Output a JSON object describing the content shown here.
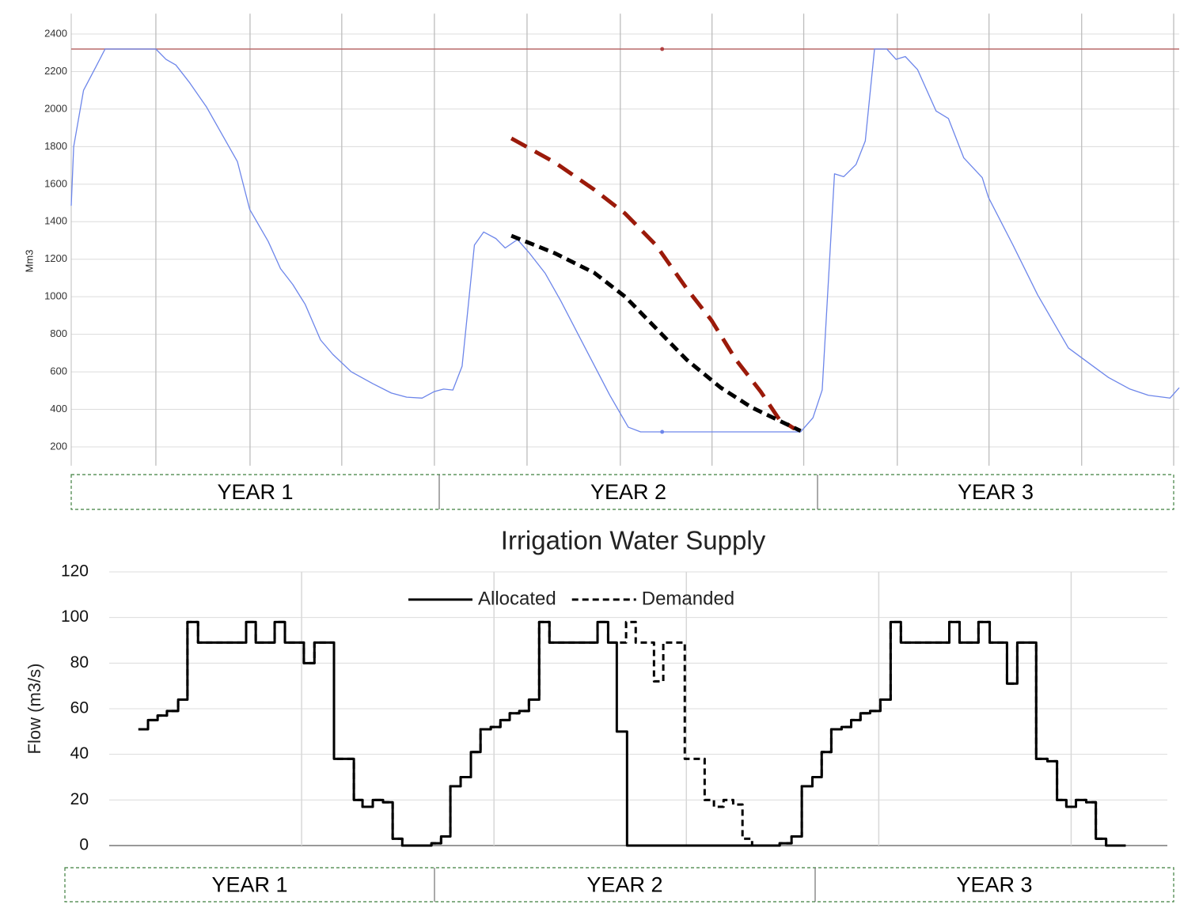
{
  "chart_data": [
    {
      "type": "line",
      "ylabel": "Mm3",
      "xlim": [
        0,
        36
      ],
      "ylim": [
        100,
        2500
      ],
      "yticks": [
        200,
        400,
        600,
        800,
        1000,
        1200,
        1400,
        1600,
        1800,
        2000,
        2200,
        2400
      ],
      "xgrid": [
        2.75,
        5.81,
        8.79,
        11.8,
        14.81,
        17.84,
        20.82,
        23.8,
        26.84,
        29.82,
        32.83,
        35.82
      ],
      "grid": true,
      "periods": [
        "YEAR 1",
        "YEAR 2",
        "YEAR 3"
      ],
      "reference_line": {
        "value": 2320,
        "color": "#b86a6a"
      },
      "markers": [
        {
          "x": 19.2,
          "value": 2320,
          "color": "#b04040"
        },
        {
          "x": 19.2,
          "value": 280,
          "color": "#6d86ea"
        }
      ],
      "series": [
        {
          "color": "#6d86ea",
          "style": "solid",
          "x": [
            0,
            0.08,
            0.4,
            0.8,
            1.1,
            2.75,
            3.08,
            3.4,
            3.85,
            4.4,
            4.9,
            5.4,
            5.8,
            6.4,
            6.8,
            7.2,
            7.6,
            8.1,
            8.5,
            9.1,
            9.8,
            10.4,
            10.9,
            11.4,
            11.8,
            12.1,
            12.4,
            12.7,
            13.1,
            13.4,
            13.8,
            14.1,
            14.5,
            14.9,
            15.4,
            15.9,
            16.7,
            17.5,
            18.1,
            18.5,
            19.2,
            23.7,
            24.1,
            24.4,
            24.8,
            25.1,
            25.5,
            25.8,
            26.1,
            26.5,
            26.8,
            27.1,
            27.5,
            28.1,
            28.5,
            29.0,
            29.6,
            29.8,
            30.6,
            31.4,
            32.4,
            33.2,
            33.7,
            34.4,
            35.0,
            35.7,
            36.0
          ],
          "values": [
            1485,
            1800,
            2100,
            2225,
            2320,
            2320,
            2265,
            2235,
            2140,
            2010,
            1865,
            1720,
            1465,
            1295,
            1150,
            1065,
            960,
            770,
            693,
            600,
            537,
            487,
            465,
            460,
            495,
            508,
            503,
            630,
            1275,
            1345,
            1310,
            1260,
            1305,
            1230,
            1125,
            980,
            727,
            475,
            305,
            280,
            280,
            280,
            355,
            503,
            1655,
            1640,
            1705,
            1830,
            2320,
            2320,
            2265,
            2280,
            2210,
            1990,
            1950,
            1740,
            1635,
            1530,
            1275,
            1010,
            727,
            630,
            570,
            508,
            475,
            460,
            515
          ]
        },
        {
          "color": "#9b1a0a",
          "style": "dashed",
          "x": [
            14.3,
            15.7,
            17.0,
            18.0,
            19.0,
            20.0,
            20.8,
            21.6,
            22.4,
            23.0,
            23.5
          ],
          "values": [
            1844,
            1717,
            1570,
            1443,
            1275,
            1043,
            875,
            664,
            495,
            348,
            297
          ]
        },
        {
          "color": "#000000",
          "style": "dashed",
          "x": [
            14.3,
            15.7,
            17.0,
            18.0,
            19.0,
            20.0,
            21.1,
            22.1,
            23.7
          ],
          "values": [
            1325,
            1233,
            1127,
            1000,
            832,
            664,
            516,
            411,
            285
          ]
        }
      ]
    },
    {
      "type": "step",
      "title": "Irrigation Water Supply",
      "ylabel": "Flow (m3/s)",
      "xlim": [
        0,
        33
      ],
      "ylim": [
        0,
        120
      ],
      "yticks": [
        0,
        20,
        40,
        60,
        80,
        100,
        120
      ],
      "xgrid": [
        6,
        12,
        18,
        24,
        30
      ],
      "grid": true,
      "legend": "top",
      "periods": [
        "YEAR 1",
        "YEAR 2",
        "YEAR 3"
      ],
      "series": [
        {
          "name": "Allocated",
          "color": "#000000",
          "style": "solid",
          "x": [
            0.91,
            1.21,
            1.51,
            1.8,
            2.15,
            2.44,
            2.77,
            4.27,
            4.57,
            5.16,
            5.48,
            6.07,
            6.4,
            7.01,
            7.63,
            7.9,
            8.22,
            8.54,
            8.84,
            9.14,
            10.05,
            10.35,
            10.64,
            10.96,
            11.28,
            11.58,
            11.9,
            12.2,
            12.49,
            12.79,
            13.09,
            13.41,
            13.73,
            15.23,
            15.56,
            15.83,
            16.15,
            20.91,
            21.28,
            21.6,
            21.93,
            22.22,
            22.52,
            22.84,
            23.14,
            23.43,
            23.73,
            24.05,
            24.37,
            24.69,
            26.2,
            26.52,
            27.11,
            27.46,
            28.0,
            28.32,
            28.91,
            29.26,
            29.56,
            29.85,
            30.15,
            30.47,
            30.77,
            31.09,
            31.7
          ],
          "values": [
            51,
            55,
            57,
            59,
            64,
            98,
            89,
            98,
            89,
            98,
            89,
            80,
            89,
            38,
            20,
            17,
            20,
            19,
            3,
            0,
            1,
            4,
            26,
            30,
            41,
            51,
            52,
            55,
            58,
            59,
            64,
            98,
            89,
            98,
            89,
            50,
            0,
            1,
            4,
            26,
            30,
            41,
            51,
            52,
            55,
            58,
            59,
            64,
            98,
            89,
            98,
            89,
            98,
            89,
            71,
            89,
            38,
            37,
            20,
            17,
            20,
            19,
            3,
            0,
            0
          ]
        },
        {
          "name": "Demanded",
          "color": "#000000",
          "style": "dashed",
          "x": [
            0.91,
            1.21,
            1.51,
            1.8,
            2.15,
            2.44,
            2.77,
            4.27,
            4.57,
            5.16,
            5.48,
            6.07,
            6.4,
            7.01,
            7.63,
            7.9,
            8.22,
            8.54,
            8.84,
            9.14,
            10.05,
            10.35,
            10.64,
            10.96,
            11.28,
            11.58,
            11.9,
            12.2,
            12.49,
            12.79,
            13.09,
            13.41,
            13.73,
            15.23,
            15.56,
            16.12,
            16.42,
            16.99,
            17.28,
            17.95,
            18.57,
            18.86,
            19.16,
            19.46,
            19.75,
            20.05,
            20.91,
            21.28,
            21.6,
            21.93,
            22.22,
            22.52,
            22.84,
            23.14,
            23.43,
            23.73,
            24.05,
            24.37,
            24.69,
            26.2,
            26.52,
            27.11,
            27.46,
            28.0,
            28.32,
            28.91,
            29.26,
            29.56,
            29.85,
            30.15,
            30.47,
            30.77,
            31.09,
            31.7
          ],
          "values": [
            51,
            55,
            57,
            59,
            64,
            98,
            89,
            98,
            89,
            98,
            89,
            80,
            89,
            38,
            20,
            17,
            20,
            19,
            3,
            0,
            1,
            4,
            26,
            30,
            41,
            51,
            52,
            55,
            58,
            59,
            64,
            98,
            89,
            98,
            89,
            98,
            89,
            72,
            89,
            38,
            20,
            17,
            20,
            18,
            3,
            0,
            1,
            4,
            26,
            30,
            41,
            51,
            52,
            55,
            58,
            59,
            64,
            98,
            89,
            98,
            89,
            98,
            89,
            71,
            89,
            38,
            37,
            20,
            17,
            20,
            19,
            3,
            0,
            0
          ]
        }
      ]
    }
  ]
}
